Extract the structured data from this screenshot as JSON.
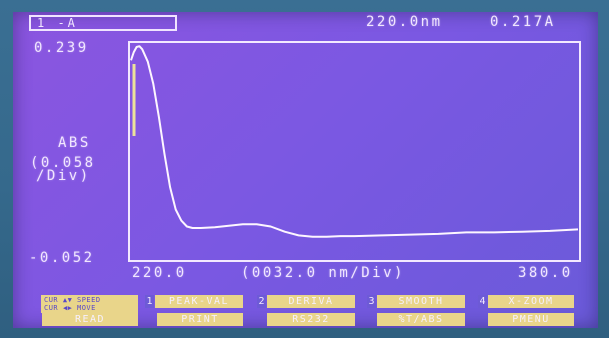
{
  "header": {
    "mode": "1 -A",
    "wavelength": "220.0nm",
    "absorbance": "0.217A"
  },
  "axis": {
    "y_max": "0.239",
    "y_label": "ABS",
    "y_scale_value": "(0.058",
    "y_scale_unit": "/Div)",
    "y_min": "-0.052",
    "x_min": "220.0",
    "x_scale": "(0032.0 nm/Div)",
    "x_max": "380.0"
  },
  "softkeys": {
    "cursor_line1": "CUR ▲▼ SPEED",
    "cursor_line2": "CUR ◀▶ MOVE",
    "top": [
      {
        "num": "1",
        "label": "PEAK-VAL"
      },
      {
        "num": "2",
        "label": "DERIVA"
      },
      {
        "num": "3",
        "label": "SMOOTH"
      },
      {
        "num": "4",
        "label": "X-ZOOM"
      }
    ],
    "bottom": [
      "READ",
      "PRINT",
      "RS232",
      "%T/ABS",
      "PMENU"
    ]
  },
  "colors": {
    "screen": "#7b57e0",
    "trace": "#fdf6ff",
    "softkey": "#e9d58a",
    "bezel": "#35698c"
  },
  "chart_data": {
    "type": "line",
    "xlabel": "(0032.0 nm/Div)",
    "ylabel": "ABS",
    "xlim": [
      220.0,
      380.0
    ],
    "ylim": [
      -0.052,
      0.239
    ],
    "cursor_x": 220.0,
    "series": [
      {
        "x": [
          220,
          221,
          222,
          223,
          224,
          226,
          228,
          230,
          232,
          234,
          236,
          238,
          240,
          242,
          245,
          250,
          255,
          260,
          265,
          270,
          275,
          280,
          285,
          290,
          295,
          300,
          310,
          320,
          330,
          340,
          350,
          360,
          370,
          380
        ],
        "values": [
          0.217,
          0.228,
          0.235,
          0.236,
          0.232,
          0.215,
          0.185,
          0.14,
          0.09,
          0.045,
          0.015,
          0.0,
          -0.008,
          -0.01,
          -0.01,
          -0.009,
          -0.007,
          -0.005,
          -0.005,
          -0.008,
          -0.015,
          -0.02,
          -0.022,
          -0.022,
          -0.021,
          -0.021,
          -0.02,
          -0.019,
          -0.018,
          -0.016,
          -0.016,
          -0.015,
          -0.014,
          -0.012
        ]
      }
    ]
  }
}
